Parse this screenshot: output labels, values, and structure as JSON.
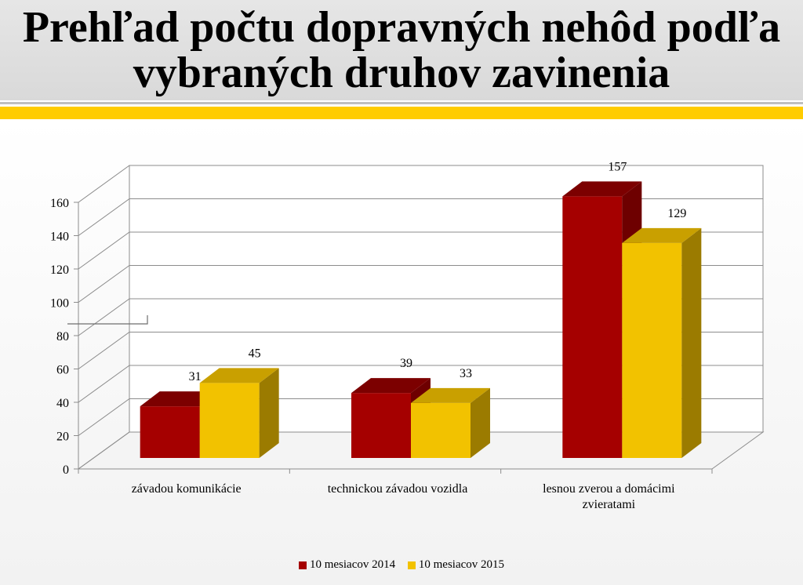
{
  "title": "Prehľad počtu dopravných nehôd podľa vybraných druhov zavinenia",
  "colors": {
    "accent": "#ffcc00",
    "series_2014": "#a50000",
    "series_2015": "#f2c200"
  },
  "chart_data": {
    "type": "bar",
    "categories": [
      "závadou komunikácie",
      "technickou závadou vozidla",
      "lesnou zverou a domácimi zvieratami"
    ],
    "category_lines": [
      [
        "závadou komunikácie"
      ],
      [
        "technickou závadou vozidla"
      ],
      [
        "lesnou zverou a domácimi",
        "zvieratami"
      ]
    ],
    "series": [
      {
        "name": "10 mesiacov 2014",
        "values": [
          31,
          39,
          157
        ]
      },
      {
        "name": "10 mesiacov 2015",
        "values": [
          45,
          33,
          129
        ]
      }
    ],
    "ylim": [
      0,
      160
    ],
    "yticks": [
      0,
      20,
      40,
      60,
      80,
      100,
      120,
      140,
      160
    ],
    "legend": "bottom",
    "grid": true
  }
}
